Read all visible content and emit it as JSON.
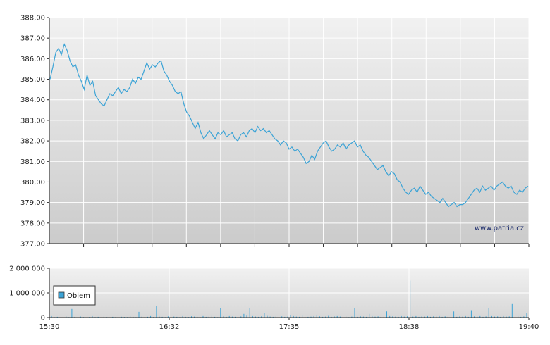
{
  "chart_data": [
    {
      "type": "line",
      "ylim": [
        377,
        388
      ],
      "yticks": [
        "388,00",
        "387,00",
        "386,00",
        "385,00",
        "384,00",
        "383,00",
        "382,00",
        "381,00",
        "380,00",
        "379,00",
        "378,00",
        "377,00"
      ],
      "xlim": [
        "15:30",
        "19:40"
      ],
      "grid": true,
      "colors": {
        "line": "#3ba3d6",
        "reference": "#d9534f"
      },
      "reference_line": 385.55,
      "series": [
        {
          "values": [
            385.0,
            385.6,
            386.3,
            386.5,
            386.2,
            386.7,
            386.4,
            385.9,
            385.6,
            385.7,
            385.2,
            384.9,
            384.5,
            385.2,
            384.7,
            384.9,
            384.2,
            384.0,
            383.8,
            383.7,
            384.0,
            384.3,
            384.2,
            384.4,
            384.6,
            384.3,
            384.5,
            384.4,
            384.6,
            385.0,
            384.8,
            385.1,
            385.0,
            385.4,
            385.8,
            385.5,
            385.7,
            385.6,
            385.8,
            385.9,
            385.4,
            385.2,
            384.9,
            384.7,
            384.4,
            384.3,
            384.4,
            383.8,
            383.4,
            383.2,
            382.9,
            382.6,
            382.9,
            382.4,
            382.1,
            382.3,
            382.5,
            382.3,
            382.1,
            382.4,
            382.3,
            382.5,
            382.2,
            382.3,
            382.4,
            382.1,
            382.0,
            382.3,
            382.4,
            382.2,
            382.5,
            382.6,
            382.4,
            382.7,
            382.5,
            382.6,
            382.4,
            382.5,
            382.3,
            382.1,
            382.0,
            381.8,
            382.0,
            381.9,
            381.6,
            381.7,
            381.5,
            381.6,
            381.4,
            381.2,
            380.9,
            381.0,
            381.3,
            381.1,
            381.5,
            381.7,
            381.9,
            382.0,
            381.7,
            381.5,
            381.6,
            381.8,
            381.7,
            381.9,
            381.6,
            381.8,
            381.9,
            382.0,
            381.7,
            381.8,
            381.5,
            381.3,
            381.2,
            381.0,
            380.8,
            380.6,
            380.7,
            380.8,
            380.5,
            380.3,
            380.5,
            380.4,
            380.1,
            380.0,
            379.7,
            379.5,
            379.4,
            379.6,
            379.7,
            379.5,
            379.8,
            379.6,
            379.4,
            379.5,
            379.3,
            379.2,
            379.1,
            379.0,
            379.2,
            379.0,
            378.8,
            378.9,
            379.0,
            378.8,
            378.9,
            378.9,
            379.0,
            379.2,
            379.4,
            379.6,
            379.7,
            379.5,
            379.8,
            379.6,
            379.7,
            379.8,
            379.6,
            379.8,
            379.9,
            380.0,
            379.8,
            379.7,
            379.8,
            379.5,
            379.4,
            379.6,
            379.5,
            379.7,
            379.8
          ]
        }
      ]
    },
    {
      "type": "bar",
      "ylim": [
        0,
        2000000
      ],
      "yticks": [
        "2 000 000",
        "1 000 000",
        "0"
      ],
      "xticks": [
        "15:30",
        "16:32",
        "17:35",
        "18:38",
        "19:40"
      ],
      "grid": true,
      "legend": {
        "label": "Objem",
        "placement": "bottom-left"
      },
      "colors": {
        "bars": "#3ba3d6"
      },
      "series": [
        {
          "name": "Objem",
          "values": [
            60000,
            20000,
            30000,
            15000,
            25000,
            50000,
            20000,
            350000,
            30000,
            15000,
            40000,
            20000,
            10000,
            25000,
            60000,
            20000,
            30000,
            15000,
            40000,
            20000,
            10000,
            30000,
            20000,
            15000,
            35000,
            25000,
            20000,
            60000,
            30000,
            20000,
            230000,
            40000,
            20000,
            30000,
            60000,
            25000,
            480000,
            40000,
            30000,
            20000,
            50000,
            80000,
            40000,
            30000,
            20000,
            60000,
            30000,
            25000,
            50000,
            40000,
            30000,
            20000,
            60000,
            30000,
            40000,
            70000,
            30000,
            20000,
            380000,
            50000,
            30000,
            60000,
            40000,
            30000,
            20000,
            50000,
            150000,
            80000,
            400000,
            60000,
            40000,
            30000,
            50000,
            200000,
            70000,
            40000,
            30000,
            60000,
            250000,
            50000,
            30000,
            40000,
            100000,
            60000,
            40000,
            30000,
            80000,
            20000,
            30000,
            40000,
            60000,
            80000,
            50000,
            30000,
            40000,
            70000,
            30000,
            50000,
            60000,
            40000,
            30000,
            50000,
            20000,
            40000,
            400000,
            30000,
            50000,
            40000,
            30000,
            150000,
            60000,
            40000,
            50000,
            30000,
            40000,
            250000,
            60000,
            50000,
            40000,
            30000,
            60000,
            40000,
            50000,
            1500000,
            40000,
            60000,
            30000,
            50000,
            40000,
            60000,
            30000,
            50000,
            40000,
            60000,
            30000,
            50000,
            40000,
            60000,
            250000,
            30000,
            50000,
            40000,
            60000,
            30000,
            300000,
            50000,
            40000,
            60000,
            30000,
            50000,
            400000,
            60000,
            40000,
            50000,
            30000,
            60000,
            40000,
            50000,
            550000,
            40000,
            60000,
            30000,
            50000,
            200000
          ]
        }
      ]
    }
  ],
  "watermark": "www.patria.cz"
}
